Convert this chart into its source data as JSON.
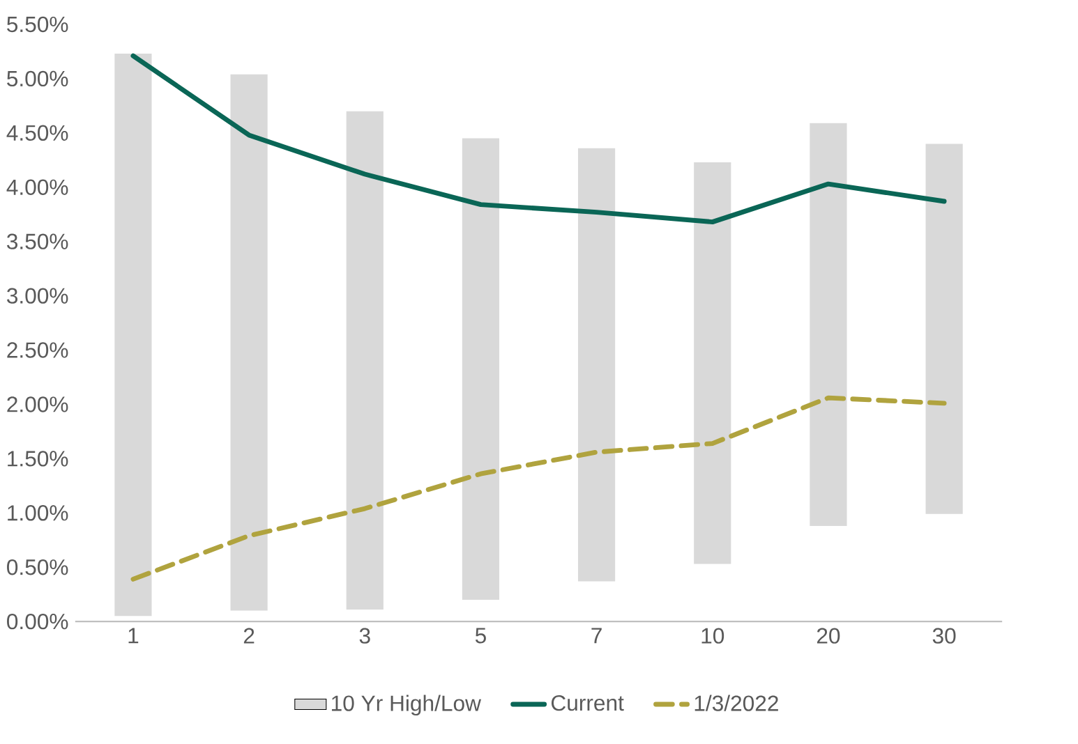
{
  "chart_data": {
    "type": "line",
    "categories": [
      "1",
      "2",
      "3",
      "5",
      "7",
      "10",
      "20",
      "30"
    ],
    "series": [
      {
        "name": "10 Yr High/Low",
        "type": "bar",
        "color": "#d9d9d9",
        "base": [
          0.05,
          0.1,
          0.11,
          0.2,
          0.37,
          0.53,
          0.88,
          0.99
        ],
        "values": [
          5.18,
          4.94,
          4.59,
          4.25,
          3.99,
          3.7,
          3.71,
          3.41
        ]
      },
      {
        "name": "Current",
        "color": "#0a6656",
        "line_style": "solid",
        "values": [
          5.21,
          4.48,
          4.12,
          3.84,
          3.77,
          3.68,
          4.03,
          3.87
        ]
      },
      {
        "name": "1/3/2022",
        "color": "#b0a33e",
        "line_style": "dashed",
        "values": [
          0.39,
          0.79,
          1.04,
          1.36,
          1.56,
          1.64,
          2.06,
          2.01
        ]
      }
    ],
    "ylim": [
      0,
      5.5
    ],
    "yticks": [
      {
        "value": 0,
        "label": "0.00%"
      },
      {
        "value": 0.5,
        "label": "0.50%"
      },
      {
        "value": 1,
        "label": "1.00%"
      },
      {
        "value": 1.5,
        "label": "1.50%"
      },
      {
        "value": 2,
        "label": "2.00%"
      },
      {
        "value": 2.5,
        "label": "2.50%"
      },
      {
        "value": 3,
        "label": "3.00%"
      },
      {
        "value": 3.5,
        "label": "3.50%"
      },
      {
        "value": 4,
        "label": "4.00%"
      },
      {
        "value": 4.5,
        "label": "4.50%"
      },
      {
        "value": 5,
        "label": "5.00%"
      },
      {
        "value": 5.5,
        "label": "5.50%"
      }
    ],
    "legend": "bottom",
    "grid": false
  }
}
